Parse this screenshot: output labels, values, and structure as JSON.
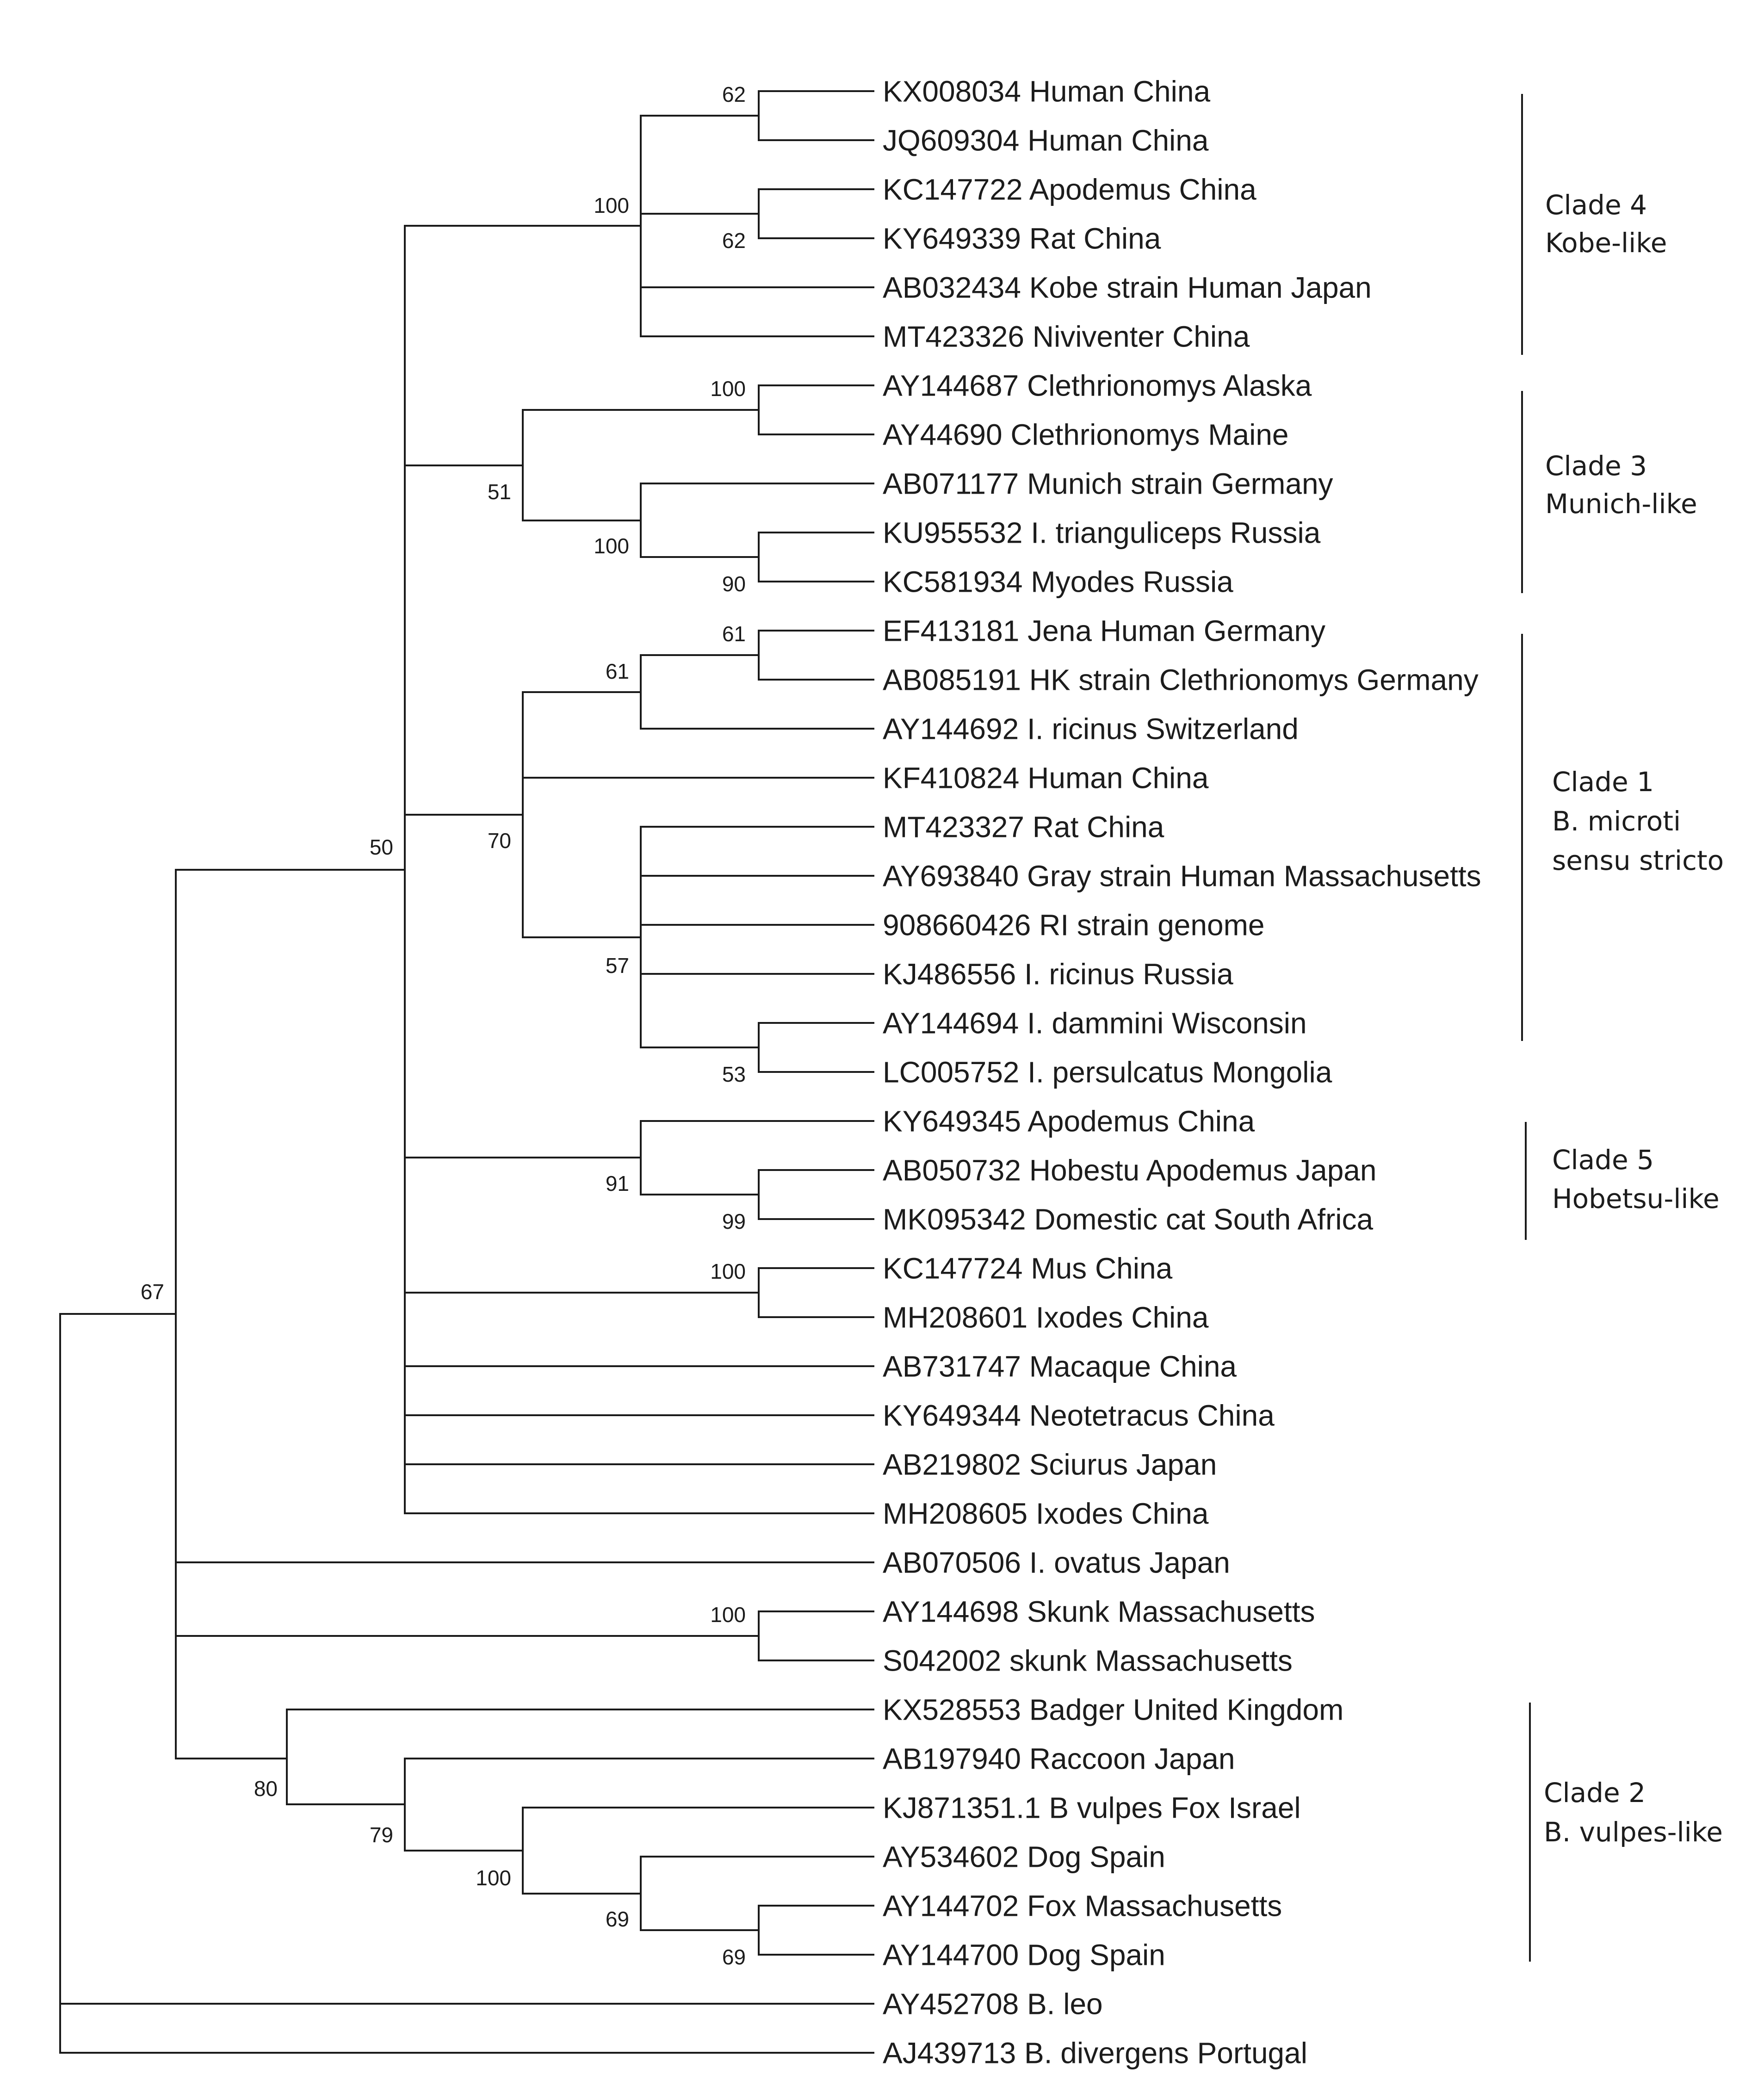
{
  "figure": {
    "type": "phylogenetic-tree",
    "description_free": true
  },
  "taxa": [
    "KX008034 Human China",
    "JQ609304 Human China",
    "KC147722 Apodemus China",
    "KY649339 Rat China",
    "AB032434 Kobe strain Human Japan",
    "MT423326 Niviventer China",
    "AY144687 Clethrionomys Alaska",
    "AY44690 Clethrionomys Maine",
    "AB071177 Munich strain Germany",
    "KU955532 I. trianguliceps Russia",
    "KC581934 Myodes Russia",
    "EF413181 Jena Human Germany",
    "AB085191 HK strain Clethrionomys Germany",
    "AY144692 I. ricinus Switzerland",
    "KF410824 Human China",
    "MT423327 Rat China",
    "AY693840 Gray strain Human Massachusetts",
    "908660426 RI strain genome",
    "KJ486556 I. ricinus Russia",
    "AY144694 I. dammini Wisconsin",
    "LC005752 I. persulcatus Mongolia",
    "KY649345 Apodemus China",
    "AB050732 Hobestu Apodemus Japan",
    "MK095342 Domestic cat South Africa",
    "KC147724 Mus China",
    "MH208601 Ixodes China",
    "AB731747 Macaque China",
    "KY649344 Neotetracus China",
    "AB219802 Sciurus Japan",
    "MH208605 Ixodes China",
    "AB070506 I. ovatus Japan",
    "AY144698 Skunk Massachusetts",
    "S042002 skunk Massachusetts",
    "KX528553 Badger United Kingdom",
    "AB197940 Raccoon Japan",
    "KJ871351.1 B vulpes Fox Israel",
    "AY534602 Dog Spain",
    "AY144702 Fox Massachusetts",
    "AY144700 Dog Spain",
    "AY452708 B. leo",
    "AJ439713 B. divergens Portugal"
  ],
  "support_values": [
    "62",
    "62",
    "100",
    "100",
    "100",
    "90",
    "51",
    "61",
    "61",
    "57",
    "53",
    "70",
    "91",
    "99",
    "100",
    "50",
    "100",
    "69",
    "69",
    "100",
    "79",
    "80",
    "67"
  ],
  "clades": [
    {
      "name": "Clade 4",
      "description": "Kobe-like"
    },
    {
      "name": "Clade 3",
      "description": "Munich-like"
    },
    {
      "name": "Clade 1",
      "description": "B. microti",
      "description2": "sensu stricto"
    },
    {
      "name": "Clade 5",
      "description": "Hobetsu-like"
    },
    {
      "name": "Clade 2",
      "description": "B. vulpes-like"
    }
  ]
}
